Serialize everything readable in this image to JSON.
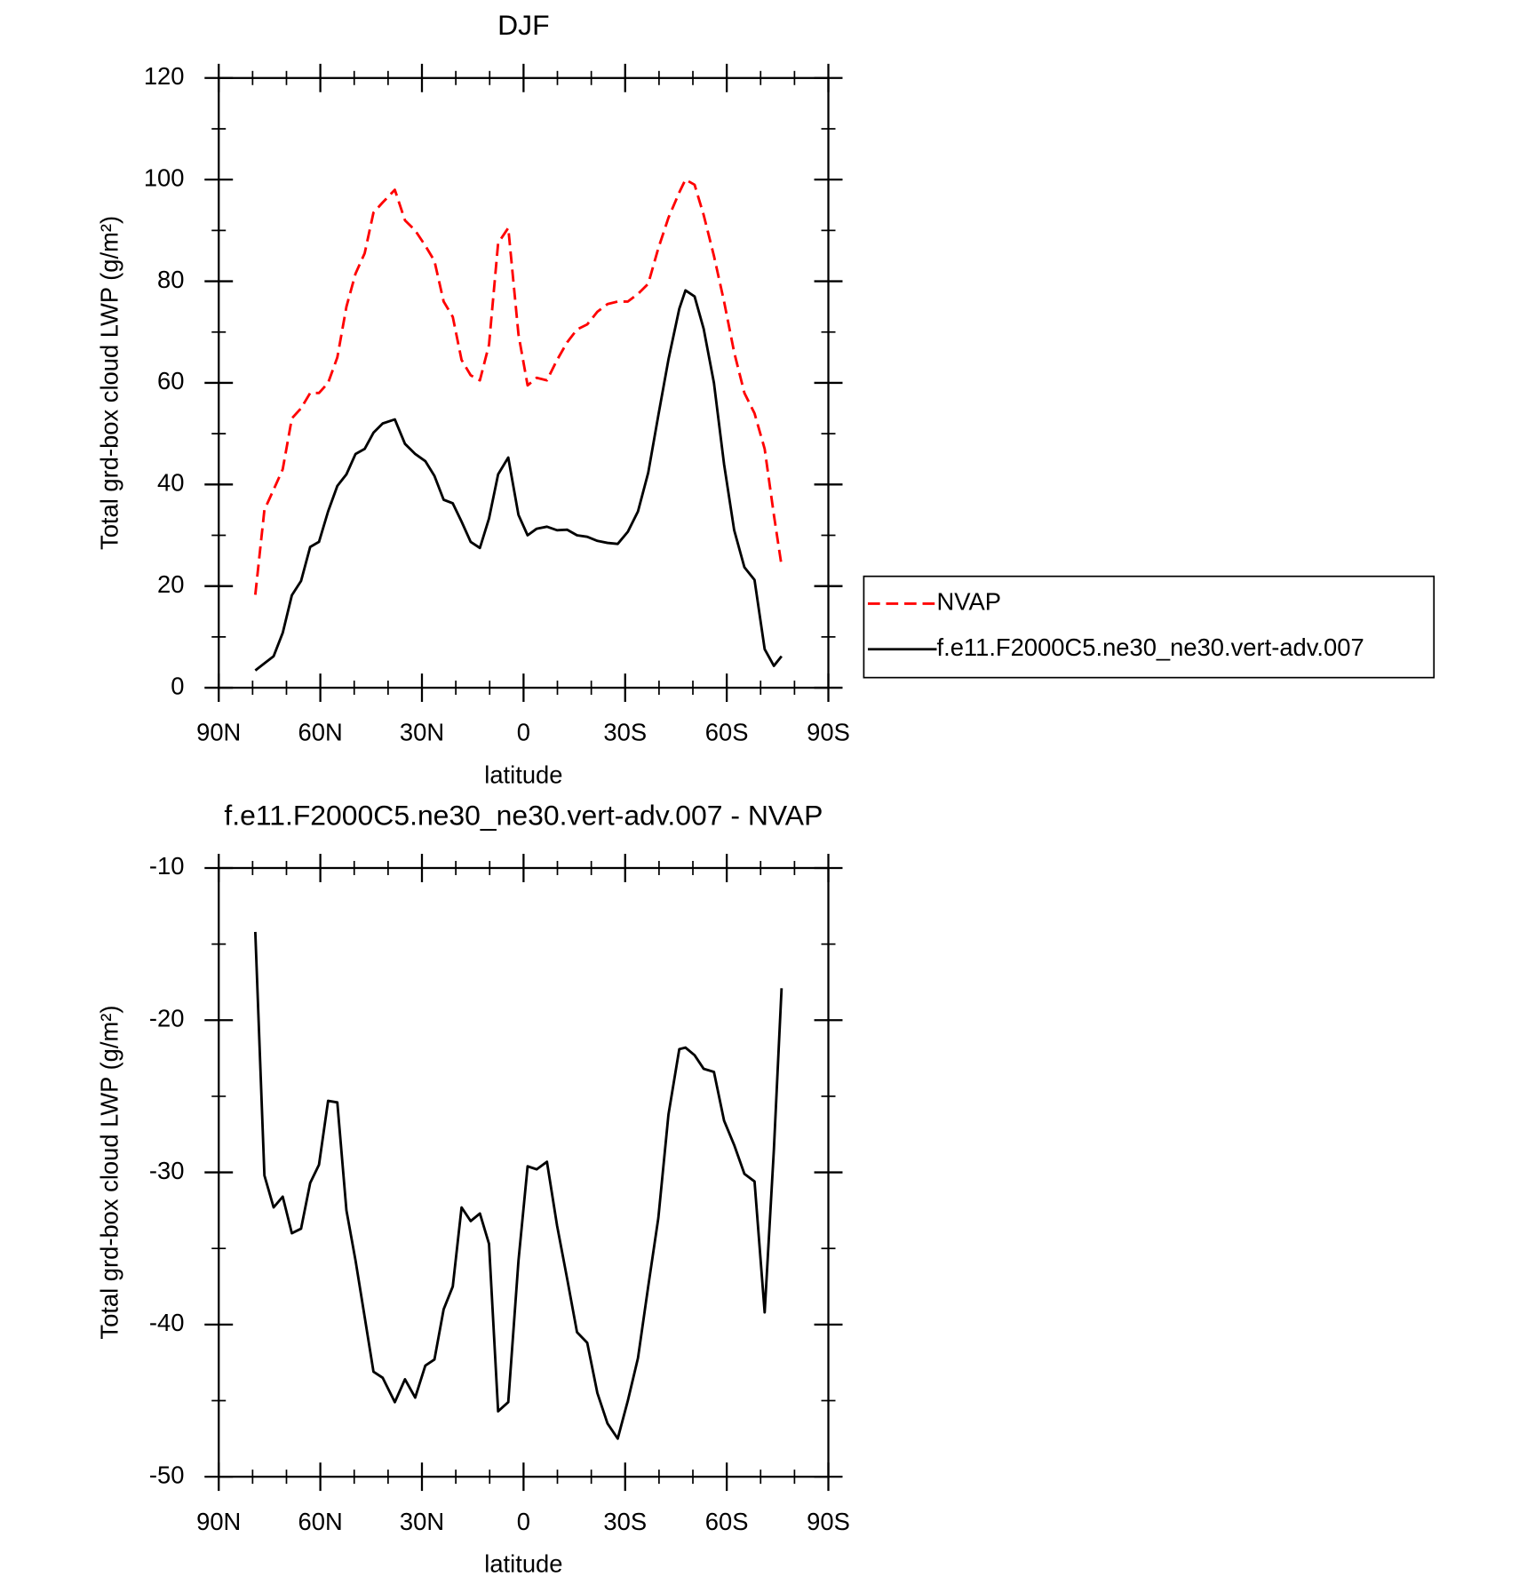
{
  "chart_data": [
    {
      "type": "line",
      "title": "DJF",
      "xlabel": "latitude",
      "ylabel": "Total grd-box cloud LWP (g/m²)",
      "x": [
        79.2,
        76.5,
        73.8,
        71.1,
        68.4,
        65.7,
        63.0,
        60.4,
        57.7,
        55.0,
        52.3,
        49.6,
        46.9,
        44.3,
        41.6,
        38.0,
        35.0,
        32.0,
        29.0,
        26.3,
        23.6,
        20.9,
        18.3,
        15.6,
        12.9,
        10.2,
        7.5,
        4.5,
        1.5,
        -1.2,
        -3.9,
        -6.9,
        -9.9,
        -12.9,
        -15.8,
        -18.8,
        -21.8,
        -24.8,
        -27.8,
        -30.8,
        -33.8,
        -36.8,
        -39.8,
        -42.8,
        -46.0,
        -47.8,
        -50.5,
        -53.2,
        -56.2,
        -59.2,
        -62.2,
        -65.2,
        -68.2,
        -71.2,
        -73.9,
        -76.2
      ],
      "series": [
        {
          "name": "NVAP",
          "color": "#ff0000",
          "linestyle": "dashed",
          "values": [
            18.3,
            35,
            39,
            43,
            53,
            55,
            58,
            58,
            60,
            65,
            75,
            81.5,
            85.5,
            93.5,
            95.5,
            98,
            92,
            90,
            87,
            84,
            76,
            73,
            64.5,
            61.5,
            60.5,
            67.5,
            87.5,
            90.5,
            69.5,
            59.5,
            61,
            60.5,
            64.5,
            68,
            70.5,
            71.5,
            74,
            75.5,
            76,
            76,
            77.5,
            79.5,
            86.5,
            92.5,
            97.5,
            100,
            99,
            93,
            85,
            76,
            66,
            58,
            54,
            47,
            34,
            24
          ]
        },
        {
          "name": "f.e11.F2000C5.ne30_ne30.vert-adv.007",
          "color": "#000000",
          "linestyle": "solid",
          "values": [
            3.4,
            4.8,
            6.2,
            10.8,
            18.2,
            21,
            27.7,
            28.7,
            34.7,
            39.7,
            42,
            46,
            47,
            50.2,
            52,
            52.8,
            48,
            46,
            44.6,
            41.7,
            37,
            36.3,
            32.7,
            28.7,
            27.5,
            33.3,
            42,
            45.3,
            34,
            30,
            31.3,
            31.7,
            31,
            31.1,
            30,
            29.7,
            28.9,
            28.5,
            28.3,
            30.7,
            34.7,
            42.3,
            53.6,
            64.6,
            74.6,
            78.2,
            77,
            70.6,
            60,
            44,
            31,
            23.7,
            21.2,
            7.6,
            4.3,
            6.2
          ]
        }
      ],
      "xlim": [
        90,
        -90
      ],
      "xticks": [
        {
          "value": 90,
          "label": "90N"
        },
        {
          "value": 60,
          "label": "60N"
        },
        {
          "value": 30,
          "label": "30N"
        },
        0,
        {
          "value": -30,
          "label": "30S"
        },
        {
          "value": -60,
          "label": "60S"
        },
        {
          "value": -90,
          "label": "90S"
        }
      ],
      "ylim": [
        0,
        120
      ],
      "yticks": [
        0,
        20,
        40,
        60,
        80,
        100,
        120
      ],
      "legend": "right"
    },
    {
      "type": "line",
      "title": "f.e11.F2000C5.ne30_ne30.vert-adv.007 - NVAP",
      "xlabel": "latitude",
      "ylabel": "Total grd-box cloud LWP (g/m²)",
      "x": [
        79.2,
        76.5,
        73.8,
        71.1,
        68.4,
        65.7,
        63.0,
        60.4,
        57.7,
        55.0,
        52.3,
        49.6,
        46.9,
        44.3,
        41.6,
        38.0,
        35.0,
        32.0,
        29.0,
        26.3,
        23.6,
        20.9,
        18.3,
        15.6,
        12.9,
        10.2,
        7.5,
        4.5,
        1.5,
        -1.2,
        -3.9,
        -6.9,
        -9.9,
        -12.9,
        -15.8,
        -18.8,
        -21.8,
        -24.8,
        -27.8,
        -30.8,
        -33.8,
        -36.8,
        -39.8,
        -42.8,
        -46.0,
        -47.8,
        -50.5,
        -53.2,
        -56.2,
        -59.2,
        -62.2,
        -65.2,
        -68.2,
        -71.2,
        -73.9,
        -76.2
      ],
      "values": [
        -14.2,
        -30.2,
        -32.3,
        -31.6,
        -34,
        -33.7,
        -30.7,
        -29.5,
        -25.3,
        -25.4,
        -32.5,
        -35.8,
        -39.5,
        -43.1,
        -43.5,
        -45.1,
        -43.6,
        -44.8,
        -42.7,
        -42.3,
        -39,
        -37.5,
        -32.3,
        -33.2,
        -32.7,
        -34.7,
        -45.7,
        -45.1,
        -35.8,
        -29.6,
        -29.8,
        -29.3,
        -33.5,
        -37,
        -40.5,
        -41.2,
        -44.5,
        -46.5,
        -47.5,
        -45,
        -42.2,
        -37.5,
        -33,
        -26.2,
        -21.9,
        -21.8,
        -22.3,
        -23.2,
        -23.4,
        -26.6,
        -28.2,
        -30.1,
        -30.6,
        -39.2,
        -28.5,
        -17.9
      ],
      "color": "#000000",
      "xlim": [
        90,
        -90
      ],
      "xticks": [
        {
          "value": 90,
          "label": "90N"
        },
        {
          "value": 60,
          "label": "60N"
        },
        {
          "value": 30,
          "label": "30N"
        },
        0,
        {
          "value": -30,
          "label": "30S"
        },
        {
          "value": -60,
          "label": "60S"
        },
        {
          "value": -90,
          "label": "90S"
        }
      ],
      "ylim": [
        -50,
        -10
      ],
      "yticks": [
        -10,
        -20,
        -30,
        -40,
        -50
      ]
    }
  ]
}
